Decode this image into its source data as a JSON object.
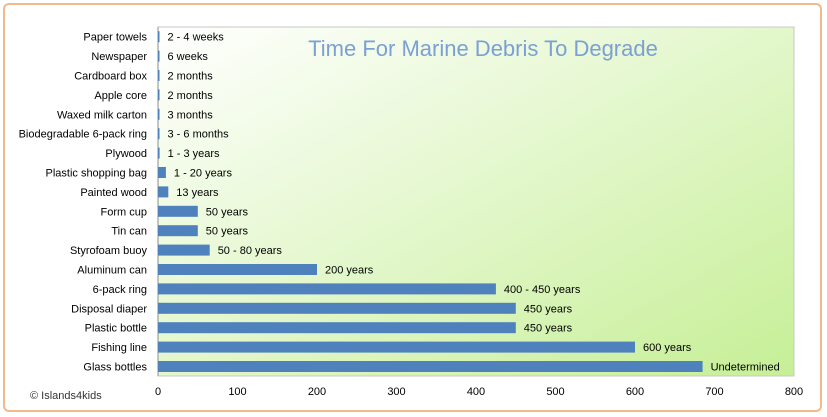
{
  "chart_data": {
    "type": "bar",
    "orientation": "horizontal",
    "title": "Time For Marine Debris To Degrade",
    "categories": [
      "Paper towels",
      "Newspaper",
      "Cardboard box",
      "Apple core",
      "Waxed milk carton",
      "Biodegradable 6-pack ring",
      "Plywood",
      "Plastic shopping bag",
      "Painted wood",
      "Form cup",
      "Tin can",
      "Styrofoam buoy",
      "Aluminum can",
      "6-pack ring",
      "Disposal diaper",
      "Plastic bottle",
      "Fishing line",
      "Glass bottles"
    ],
    "values": [
      0.06,
      0.12,
      0.17,
      0.17,
      0.25,
      0.4,
      2,
      10,
      13,
      50,
      50,
      65,
      200,
      425,
      450,
      450,
      600,
      685
    ],
    "data_labels": [
      "2 - 4 weeks",
      "6 weeks",
      "2 months",
      "2 months",
      "3 months",
      "3 - 6 months",
      "1 - 3 years",
      "1 - 20 years",
      "13 years",
      "50 years",
      "50 years",
      "50 - 80 years",
      "200 years",
      "400 - 450 years",
      "450 years",
      "450 years",
      "600 years",
      "Undetermined"
    ],
    "xlim": [
      0,
      800
    ],
    "xticks": [
      0,
      100,
      200,
      300,
      400,
      500,
      600,
      700,
      800
    ],
    "grid": false,
    "legend": "none",
    "colors": {
      "bar": "#4f81bd",
      "plot_bg_start": "#ffffff",
      "plot_bg_end": "#c6ef96",
      "title": "#7aa0d4",
      "frame_border": "#f2b98a"
    }
  },
  "footer": {
    "copyright": "© Islands4kids"
  }
}
